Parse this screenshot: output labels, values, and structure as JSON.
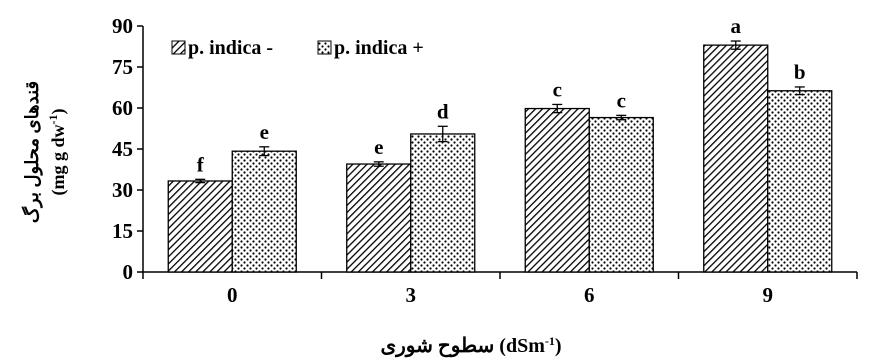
{
  "chart_data": {
    "type": "bar",
    "categories": [
      "0",
      "3",
      "6",
      "9"
    ],
    "series": [
      {
        "name": "p. indica -",
        "values": [
          33.3,
          39.5,
          59.8,
          83.0
        ],
        "errors": [
          0.6,
          0.8,
          1.5,
          1.5
        ],
        "letters": [
          "f",
          "e",
          "c",
          "a"
        ],
        "pattern": "diagonal-hatch"
      },
      {
        "name": "p. indica +",
        "values": [
          44.2,
          50.5,
          56.5,
          66.3
        ],
        "errors": [
          1.6,
          2.8,
          0.8,
          1.4
        ],
        "letters": [
          "e",
          "d",
          "c",
          "b"
        ],
        "pattern": "stipple"
      }
    ],
    "ylim": [
      0,
      90
    ],
    "yticks": [
      "0",
      "15",
      "30",
      "45",
      "60",
      "75",
      "90"
    ],
    "ylabel": {
      "line1": "قندهای محلول برگ",
      "line2_main": "(mg g dw",
      "line2_sup": "-1",
      "line2_end": ")"
    },
    "xlabel": {
      "main": "سطوح شوری (dSm",
      "sup": "-1",
      "end": ")"
    },
    "legend": "top-left",
    "grid": false
  }
}
